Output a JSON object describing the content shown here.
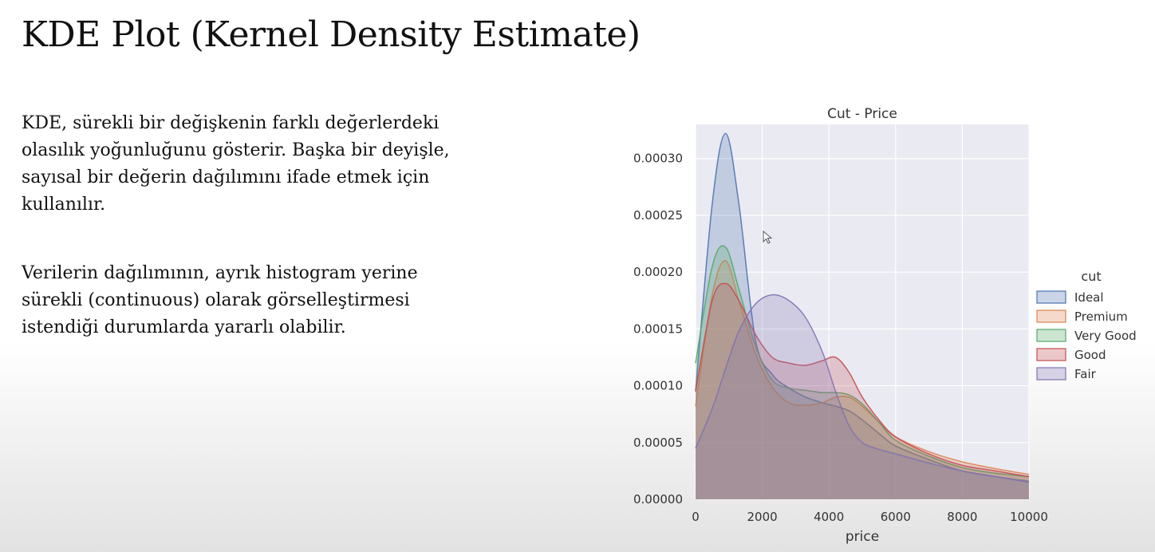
{
  "slide": {
    "title": "KDE Plot (Kernel Density Estimate)",
    "paragraph1": [
      "KDE, sürekli bir değişkenin farklı değerlerdeki",
      "olasılık yoğunluğunu gösterir. Başka bir deyişle,",
      "sayısal bir değerin dağılımını ifade etmek için",
      "kullanılır."
    ],
    "paragraph2": [
      "Verilerin dağılımının, ayrık histogram yerine",
      "sürekli (continuous) olarak görselleştirmesi",
      "istendiği durumlarda yararlı olabilir."
    ]
  },
  "chart_data": {
    "type": "area",
    "title": "Cut - Price",
    "xlabel": "price",
    "ylabel": "",
    "xlim": [
      0,
      10000
    ],
    "ylim": [
      0,
      0.00033
    ],
    "xticks": [
      0,
      2000,
      4000,
      6000,
      8000,
      10000
    ],
    "yticks": [
      "0.00000",
      "0.00005",
      "0.00010",
      "0.00015",
      "0.00020",
      "0.00025",
      "0.00030"
    ],
    "yticks_values": [
      0,
      5e-05,
      0.0001,
      0.00015,
      0.0002,
      0.00025,
      0.0003
    ],
    "grid": true,
    "plot_background": "#eaeaf2",
    "legend": {
      "title": "cut",
      "placement": "right"
    },
    "x": [
      0,
      500,
      900,
      1300,
      1800,
      2300,
      2800,
      3300,
      3800,
      4200,
      4600,
      5000,
      5500,
      6000,
      7000,
      8000,
      9000,
      10000
    ],
    "series": [
      {
        "name": "Ideal",
        "color": "#4c72b0",
        "values": [
          9.5e-05,
          0.00026,
          0.000322,
          0.00026,
          0.00014,
          0.00011,
          9.8e-05,
          9e-05,
          8.5e-05,
          8.2e-05,
          7.8e-05,
          7e-05,
          5.8e-05,
          4.7e-05,
          3.5e-05,
          2.5e-05,
          2e-05,
          1.6e-05
        ]
      },
      {
        "name": "Premium",
        "color": "#dd8452",
        "values": [
          8.2e-05,
          0.00018,
          0.00021,
          0.000175,
          0.000128,
          9.9e-05,
          8.5e-05,
          8.3e-05,
          8.5e-05,
          9e-05,
          9e-05,
          8.2e-05,
          6.8e-05,
          5.5e-05,
          4.2e-05,
          3.3e-05,
          2.7e-05,
          2.2e-05
        ]
      },
      {
        "name": "Very Good",
        "color": "#55a868",
        "values": [
          0.00012,
          0.000205,
          0.000222,
          0.000185,
          0.000135,
          0.000105,
          9.8e-05,
          9.6e-05,
          9.4e-05,
          9.4e-05,
          9.2e-05,
          8.4e-05,
          6.8e-05,
          5.2e-05,
          3.8e-05,
          2.8e-05,
          2.3e-05,
          2e-05
        ]
      },
      {
        "name": "Good",
        "color": "#c44e52",
        "values": [
          9.5e-05,
          0.000175,
          0.00019,
          0.000175,
          0.000145,
          0.000125,
          0.00012,
          0.000118,
          0.000122,
          0.000125,
          0.000112,
          9e-05,
          7e-05,
          5.5e-05,
          4e-05,
          3e-05,
          2.5e-05,
          2e-05
        ]
      },
      {
        "name": "Fair",
        "color": "#8172b3",
        "values": [
          4.5e-05,
          8e-05,
          0.000115,
          0.000148,
          0.000172,
          0.00018,
          0.000175,
          0.00016,
          0.00013,
          9.5e-05,
          6.5e-05,
          5e-05,
          4.4e-05,
          4e-05,
          3.2e-05,
          2.5e-05,
          2e-05,
          1.5e-05
        ]
      }
    ]
  }
}
